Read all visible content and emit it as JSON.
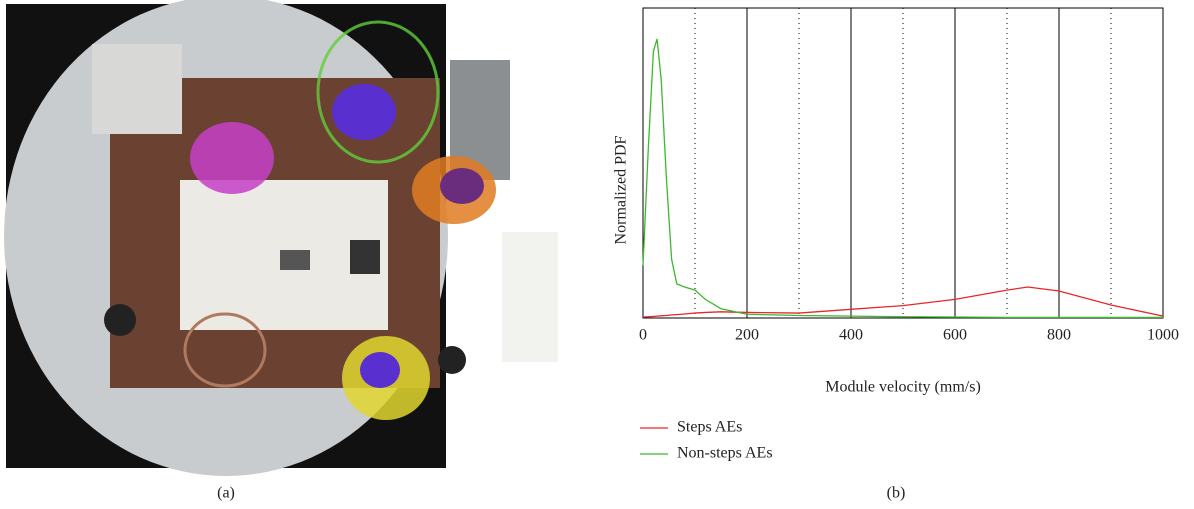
{
  "chart_data": {
    "type": "line",
    "x_label": "Module velocity (mm/s)",
    "y_label": "Normalized PDF",
    "panel_labels": [
      "(a)",
      "(b)"
    ],
    "x": [
      0,
      10,
      20,
      27,
      35,
      45,
      55,
      65,
      80,
      100,
      120,
      150,
      200,
      300,
      400,
      500,
      600,
      700,
      740,
      800,
      900,
      1000
    ],
    "series": [
      {
        "name": "Steps AEs",
        "color": "#e8262b",
        "values": [
          0.003,
          0.004,
          0.005,
          0.006,
          0.007,
          0.008,
          0.01,
          0.011,
          0.013,
          0.016,
          0.018,
          0.02,
          0.018,
          0.016,
          0.028,
          0.04,
          0.06,
          0.09,
          0.1,
          0.087,
          0.042,
          0.006
        ]
      },
      {
        "name": "Non-steps AEs",
        "color": "#3cb82e",
        "values": [
          0.17,
          0.54,
          0.86,
          0.9,
          0.77,
          0.45,
          0.19,
          0.11,
          0.1,
          0.09,
          0.06,
          0.03,
          0.012,
          0.008,
          0.006,
          0.004,
          0.003,
          0.002,
          0.002,
          0.002,
          0.002,
          0.002
        ]
      }
    ],
    "xlim": [
      0,
      1000
    ],
    "ylim": [
      0,
      1
    ],
    "xticks": [
      0,
      200,
      400,
      600,
      800,
      1000
    ],
    "x_minor_grid": [
      100,
      300,
      500,
      700,
      900
    ],
    "grid": true
  }
}
